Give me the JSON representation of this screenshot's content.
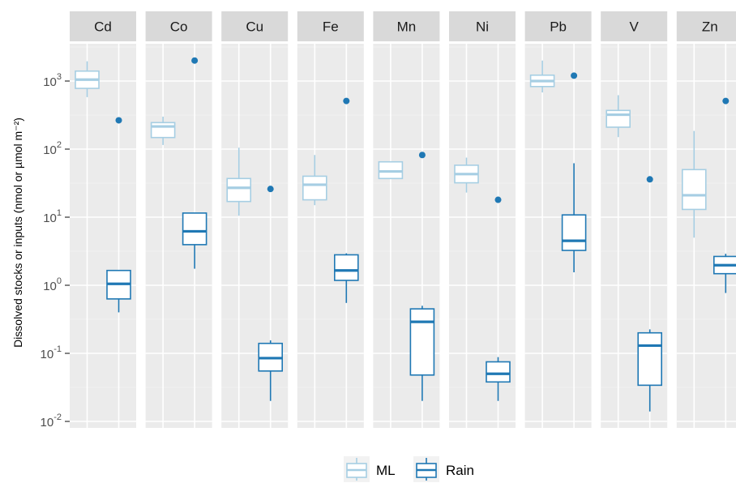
{
  "chart_data": {
    "type": "boxplot",
    "ylabel": "Dissolved stocks or inputs (nmol or µmol m⁻²)",
    "yscale": "log10",
    "ylim": [
      0.01,
      4000
    ],
    "yticks": [
      {
        "value": 0.01,
        "base": "10",
        "exp": "-2"
      },
      {
        "value": 0.1,
        "base": "10",
        "exp": "-1"
      },
      {
        "value": 1,
        "base": "10",
        "exp": "0"
      },
      {
        "value": 10,
        "base": "10",
        "exp": "1"
      },
      {
        "value": 100,
        "base": "10",
        "exp": "2"
      },
      {
        "value": 1000,
        "base": "10",
        "exp": "3"
      }
    ],
    "facets": [
      "Cd",
      "Co",
      "Cu",
      "Fe",
      "Mn",
      "Ni",
      "Pb",
      "V",
      "Zn"
    ],
    "series": [
      {
        "name": "ML",
        "color": "#a6cee3",
        "boxes": [
          {
            "facet": "Cd",
            "min": 580,
            "q1": 780,
            "median": 1050,
            "q3": 1400,
            "max": 1950,
            "outliers": []
          },
          {
            "facet": "Co",
            "min": 115,
            "q1": 148,
            "median": 215,
            "q3": 245,
            "max": 300,
            "outliers": []
          },
          {
            "facet": "Cu",
            "min": 10.5,
            "q1": 17,
            "median": 27,
            "q3": 37,
            "max": 105,
            "outliers": []
          },
          {
            "facet": "Fe",
            "min": 15,
            "q1": 18,
            "median": 30,
            "q3": 40,
            "max": 82,
            "outliers": []
          },
          {
            "facet": "Mn",
            "min": 37,
            "q1": 37,
            "median": 47,
            "q3": 65,
            "max": 65,
            "outliers": []
          },
          {
            "facet": "Ni",
            "min": 23,
            "q1": 32,
            "median": 43,
            "q3": 58,
            "max": 75,
            "outliers": []
          },
          {
            "facet": "Pb",
            "min": 680,
            "q1": 830,
            "median": 1000,
            "q3": 1220,
            "max": 2000,
            "outliers": []
          },
          {
            "facet": "V",
            "min": 150,
            "q1": 210,
            "median": 320,
            "q3": 370,
            "max": 620,
            "outliers": []
          },
          {
            "facet": "Zn",
            "min": 5,
            "q1": 13,
            "median": 21,
            "q3": 50,
            "max": 185,
            "outliers": []
          }
        ]
      },
      {
        "name": "Rain",
        "color": "#1f78b4",
        "boxes": [
          {
            "facet": "Cd",
            "min": 0.4,
            "q1": 0.63,
            "median": 1.05,
            "q3": 1.65,
            "max": 1.65,
            "outliers": [
              265
            ]
          },
          {
            "facet": "Co",
            "min": 1.75,
            "q1": 3.95,
            "median": 6.2,
            "q3": 11.5,
            "max": 11.5,
            "outliers": [
              2000
            ]
          },
          {
            "facet": "Cu",
            "min": 0.02,
            "q1": 0.055,
            "median": 0.085,
            "q3": 0.14,
            "max": 0.155,
            "outliers": [
              26
            ]
          },
          {
            "facet": "Fe",
            "min": 0.55,
            "q1": 1.18,
            "median": 1.65,
            "q3": 2.8,
            "max": 2.95,
            "outliers": [
              510
            ]
          },
          {
            "facet": "Mn",
            "min": 0.02,
            "q1": 0.048,
            "median": 0.29,
            "q3": 0.45,
            "max": 0.5,
            "outliers": [
              82
            ]
          },
          {
            "facet": "Ni",
            "min": 0.02,
            "q1": 0.038,
            "median": 0.05,
            "q3": 0.075,
            "max": 0.088,
            "outliers": [
              18
            ]
          },
          {
            "facet": "Pb",
            "min": 1.55,
            "q1": 3.25,
            "median": 4.5,
            "q3": 10.8,
            "max": 62,
            "outliers": [
              1200
            ]
          },
          {
            "facet": "V",
            "min": 0.014,
            "q1": 0.034,
            "median": 0.13,
            "q3": 0.2,
            "max": 0.225,
            "outliers": [
              36
            ]
          },
          {
            "facet": "Zn",
            "min": 0.77,
            "q1": 1.48,
            "median": 1.97,
            "q3": 2.65,
            "max": 2.9,
            "outliers": [
              510
            ]
          }
        ]
      }
    ],
    "legend": {
      "position": "bottom",
      "items": [
        {
          "label": "ML",
          "color": "#a6cee3"
        },
        {
          "label": "Rain",
          "color": "#1f78b4"
        }
      ]
    },
    "grid": true
  }
}
